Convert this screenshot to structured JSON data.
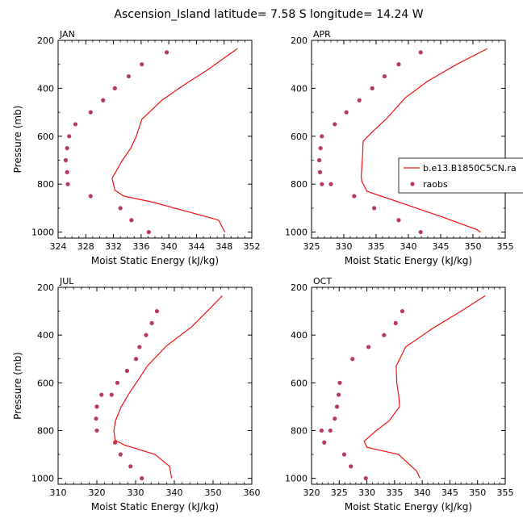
{
  "page": {
    "title": "Ascension_Island  latitude= 7.58 S longitude= 14.24 W"
  },
  "colors": {
    "model": "#ee1111",
    "obs": "#b83a5a",
    "axis": "#000000"
  },
  "legend": {
    "model_label": "b.e13.B1850C5CN.ra",
    "obs_label": "raobs"
  },
  "chart_data": [
    {
      "type": "line",
      "panel_label": "JAN",
      "xlabel": "Moist Static Energy (kJ/kg)",
      "ylabel": "Pressure (mb)",
      "xlim": [
        324,
        352
      ],
      "ylim": [
        1025,
        200
      ],
      "xticks": [
        324,
        328,
        332,
        336,
        340,
        344,
        348,
        352
      ],
      "yticks": [
        200,
        400,
        600,
        800,
        1000
      ],
      "series": [
        {
          "name": "b.e13.B1850C5CN.ra",
          "style": "line",
          "x": [
            349.9,
            345.5,
            342.0,
            339.0,
            336.1,
            335.3,
            334.5,
            333.3,
            331.8,
            332.2,
            333.5,
            337.7,
            347.2,
            348.1
          ],
          "y": [
            235,
            325,
            390,
            450,
            530,
            600,
            650,
            700,
            775,
            825,
            850,
            875,
            950,
            1000
          ]
        },
        {
          "name": "raobs",
          "style": "markers",
          "x": [
            339.7,
            336.1,
            334.2,
            332.2,
            330.5,
            328.7,
            326.5,
            325.6,
            325.3,
            325.1,
            325.3,
            325.4,
            328.7,
            333.0,
            334.6,
            337.1
          ],
          "y": [
            250,
            300,
            350,
            400,
            450,
            500,
            550,
            600,
            650,
            700,
            750,
            800,
            850,
            900,
            950,
            1000
          ]
        }
      ]
    },
    {
      "type": "line",
      "panel_label": "APR",
      "xlabel": "Moist Static Energy (kJ/kg)",
      "ylabel": "",
      "xlim": [
        325,
        355
      ],
      "ylim": [
        1025,
        200
      ],
      "xticks": [
        325,
        330,
        335,
        340,
        345,
        350,
        355
      ],
      "yticks": [
        200,
        400,
        600,
        800,
        1000
      ],
      "series": [
        {
          "name": "b.e13.B1850C5CN.ra",
          "style": "line",
          "x": [
            352.2,
            347.5,
            343.0,
            339.5,
            336.5,
            334.5,
            333.0,
            332.9,
            332.8,
            332.7,
            332.8,
            333.6,
            338.0,
            345.6,
            350.6,
            351.2
          ],
          "y": [
            235,
            300,
            370,
            440,
            530,
            580,
            620,
            680,
            720,
            770,
            790,
            830,
            870,
            940,
            990,
            1000
          ]
        },
        {
          "name": "raobs",
          "style": "markers",
          "x": [
            341.9,
            338.5,
            336.3,
            334.4,
            332.4,
            330.4,
            328.6,
            326.6,
            326.4,
            326.2,
            326.3,
            326.6,
            328.0,
            331.6,
            334.7,
            338.5,
            341.9
          ],
          "y": [
            250,
            300,
            350,
            400,
            450,
            500,
            550,
            600,
            650,
            700,
            750,
            800,
            800,
            850,
            900,
            950,
            1000
          ]
        }
      ]
    },
    {
      "type": "line",
      "panel_label": "JUL",
      "xlabel": "Moist Static Energy (kJ/kg)",
      "ylabel": "Pressure (mb)",
      "xlim": [
        310,
        360
      ],
      "ylim": [
        1025,
        200
      ],
      "xticks": [
        310,
        320,
        330,
        340,
        350,
        360
      ],
      "yticks": [
        200,
        400,
        600,
        800,
        1000
      ],
      "series": [
        {
          "name": "b.e13.B1850C5CN.ra",
          "style": "line",
          "x": [
            352.4,
            348.5,
            344.5,
            338.0,
            333.0,
            331.0,
            328.5,
            326.3,
            324.8,
            324.4,
            324.7,
            327.0,
            335.0,
            338.8,
            339.3
          ],
          "y": [
            235,
            300,
            365,
            445,
            530,
            580,
            640,
            700,
            760,
            800,
            840,
            860,
            900,
            950,
            1000
          ]
        },
        {
          "name": "raobs",
          "style": "markers",
          "x": [
            335.5,
            334.2,
            332.7,
            331.0,
            330.1,
            327.8,
            325.3,
            323.8,
            321.2,
            320.0,
            319.8,
            320.0,
            324.7,
            326.1,
            328.7,
            331.6
          ],
          "y": [
            300,
            350,
            400,
            450,
            500,
            550,
            600,
            650,
            650,
            700,
            750,
            800,
            850,
            900,
            950,
            1000
          ]
        }
      ]
    },
    {
      "type": "line",
      "panel_label": "OCT",
      "xlabel": "Moist Static Energy (kJ/kg)",
      "ylabel": "",
      "xlim": [
        320,
        355
      ],
      "ylim": [
        1025,
        200
      ],
      "xticks": [
        320,
        325,
        330,
        335,
        340,
        345,
        350,
        355
      ],
      "yticks": [
        200,
        400,
        600,
        800,
        1000
      ],
      "series": [
        {
          "name": "b.e13.B1850C5CN.ra",
          "style": "line",
          "x": [
            351.4,
            347.0,
            342.0,
            337.0,
            335.3,
            335.4,
            335.8,
            335.9,
            334.0,
            331.7,
            329.5,
            330.0,
            335.7,
            339.0,
            339.6
          ],
          "y": [
            235,
            300,
            370,
            450,
            530,
            600,
            660,
            700,
            760,
            800,
            845,
            870,
            900,
            970,
            1000
          ]
        },
        {
          "name": "raobs",
          "style": "markers",
          "x": [
            336.4,
            335.2,
            333.1,
            330.3,
            327.4,
            325.1,
            324.9,
            324.6,
            324.2,
            323.4,
            321.8,
            322.3,
            325.9,
            327.1,
            329.8
          ],
          "y": [
            300,
            350,
            400,
            450,
            500,
            600,
            650,
            700,
            750,
            800,
            800,
            850,
            900,
            950,
            1000
          ]
        }
      ]
    }
  ]
}
